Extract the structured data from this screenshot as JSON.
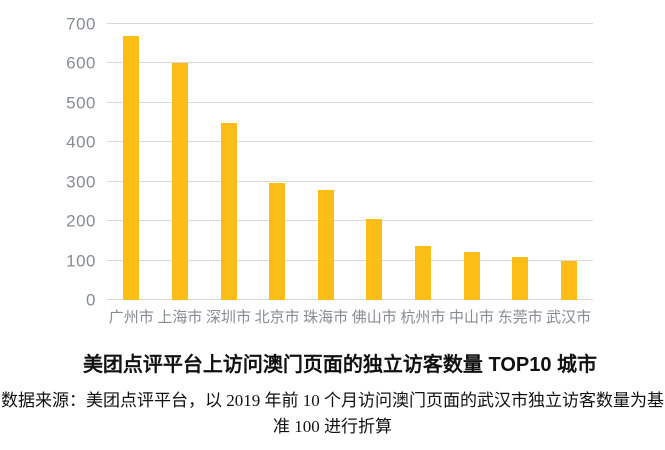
{
  "chart_data": {
    "type": "bar",
    "title": "美团点评平台上访问澳门页面的独立访客数量 TOP10 城市",
    "categories": [
      "广州市",
      "上海市",
      "深圳市",
      "北京市",
      "珠海市",
      "佛山市",
      "杭州市",
      "中山市",
      "东莞市",
      "武汉市"
    ],
    "values": [
      670,
      600,
      450,
      297,
      278,
      206,
      136,
      122,
      110,
      100
    ],
    "yticks": [
      0,
      100,
      200,
      300,
      400,
      500,
      600,
      700
    ],
    "ylim": [
      0,
      700
    ],
    "grid": true,
    "legend": false,
    "bar_color": "#fbbd16",
    "grid_color": "#d9d9d9",
    "tick_label_color": "#868c93",
    "source_note": {
      "line1": "数据来源：美团点评平台，以 2019 年前 10 个月访问澳门页面的武汉市独立访客数量为基",
      "line2": "准 100 进行折算"
    }
  }
}
